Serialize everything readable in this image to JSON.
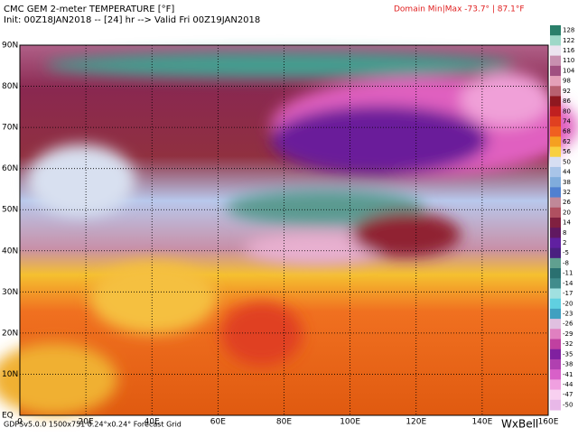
{
  "header": {
    "title": "CMC GEM 2-meter TEMPERATURE [°F]",
    "init": "Init: 00Z18JAN2018 -- [24] hr --> Valid Fri 00Z19JAN2018",
    "domain": "Domain Min|Max -73.7° | 87.1°F"
  },
  "latitude_labels": [
    "90N",
    "80N",
    "70N",
    "60N",
    "50N",
    "40N",
    "30N",
    "20N",
    "10N",
    "EQ"
  ],
  "longitude_labels": [
    "0",
    "20E",
    "40E",
    "60E",
    "80E",
    "100E",
    "120E",
    "140E",
    "160E"
  ],
  "colorbar": [
    {
      "value": 128,
      "color": "#2a7f6a"
    },
    {
      "value": 122,
      "color": "#9ed8c8"
    },
    {
      "value": 116,
      "color": "#ece4f0"
    },
    {
      "value": 110,
      "color": "#c890b0"
    },
    {
      "value": 104,
      "color": "#a05080"
    },
    {
      "value": 98,
      "color": "#e4a0b8"
    },
    {
      "value": 92,
      "color": "#b86070"
    },
    {
      "value": 86,
      "color": "#901820"
    },
    {
      "value": 80,
      "color": "#c02020"
    },
    {
      "value": 74,
      "color": "#e04020"
    },
    {
      "value": 68,
      "color": "#f06020"
    },
    {
      "value": 62,
      "color": "#f5a020"
    },
    {
      "value": 56,
      "color": "#f8d040"
    },
    {
      "value": 50,
      "color": "#d6def2"
    },
    {
      "value": 44,
      "color": "#a8c4e8"
    },
    {
      "value": 38,
      "color": "#80acdc"
    },
    {
      "value": 32,
      "color": "#5080d0"
    },
    {
      "value": 26,
      "color": "#c08898"
    },
    {
      "value": 20,
      "color": "#b05060"
    },
    {
      "value": 14,
      "color": "#802040"
    },
    {
      "value": 8,
      "color": "#601860"
    },
    {
      "value": 2,
      "color": "#6020a0"
    },
    {
      "value": -5,
      "color": "#4a2080"
    },
    {
      "value": -8,
      "color": "#60a090"
    },
    {
      "value": -11,
      "color": "#2a7070"
    },
    {
      "value": -14,
      "color": "#408c8c"
    },
    {
      "value": -17,
      "color": "#a0e0e0"
    },
    {
      "value": -20,
      "color": "#60d0e0"
    },
    {
      "value": -23,
      "color": "#40a0c0"
    },
    {
      "value": -26,
      "color": "#e0c0e0"
    },
    {
      "value": -29,
      "color": "#e080c0"
    },
    {
      "value": -32,
      "color": "#c040a0"
    },
    {
      "value": -35,
      "color": "#8020a0"
    },
    {
      "value": -38,
      "color": "#b040b0"
    },
    {
      "value": -41,
      "color": "#d860c8"
    },
    {
      "value": -44,
      "color": "#f0a0e0"
    },
    {
      "value": -47,
      "color": "#f8d0f0"
    },
    {
      "value": -50,
      "color": "#e8b8e8"
    }
  ],
  "footer": {
    "grid": "GDPSv5.0.0 1500x751 0.24°x0.24° Forecast Grid",
    "brand": "WxBell"
  }
}
